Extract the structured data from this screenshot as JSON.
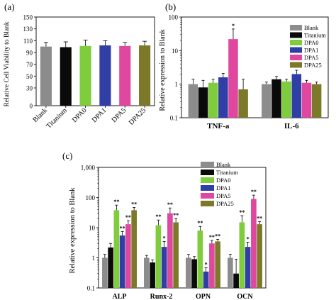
{
  "colors": {
    "Blank": "#8c8c8c",
    "Titanium": "#0a0a0a",
    "DPA0": "#7fcc3d",
    "DPA1": "#2f3fa5",
    "DPA5": "#e0479e",
    "DPA25": "#7c7a2a"
  },
  "chart_data": [
    {
      "panel": "(a)",
      "type": "bar",
      "ylabel": "Relative Cell Viability to Blank",
      "ylim": [
        0,
        150
      ],
      "yticks": [
        0,
        30,
        50,
        70,
        90,
        110,
        130,
        150
      ],
      "categories": [
        "Blank",
        "Titanium",
        "DPA0",
        "DPA1",
        "DPA5",
        "DPA25"
      ],
      "values": [
        100,
        99,
        101,
        102,
        101,
        102
      ],
      "errors": [
        7,
        9,
        10,
        8,
        6,
        7
      ]
    },
    {
      "panel": "(b)",
      "type": "bar",
      "ylabel": "Relative expression to Blank",
      "scale": "log",
      "ylim": [
        0.1,
        100
      ],
      "yticks": [
        0.1,
        1,
        10,
        100
      ],
      "yticklabels": [
        "0.1",
        "1",
        "10",
        "100"
      ],
      "categories": [
        "TNF-a",
        "IL-6"
      ],
      "series": [
        {
          "name": "Blank",
          "values": [
            1.0,
            1.0
          ],
          "errors": [
            0.4,
            0.15
          ],
          "marks": [
            "",
            ""
          ]
        },
        {
          "name": "Titanium",
          "values": [
            0.8,
            1.4
          ],
          "errors": [
            0.5,
            0.3
          ],
          "marks": [
            "",
            ""
          ]
        },
        {
          "name": "DPA0",
          "values": [
            1.1,
            1.2
          ],
          "errors": [
            0.3,
            0.2
          ],
          "marks": [
            "",
            ""
          ]
        },
        {
          "name": "DPA1",
          "values": [
            1.6,
            2.0
          ],
          "errors": [
            0.5,
            0.6
          ],
          "marks": [
            "",
            ""
          ]
        },
        {
          "name": "DPA5",
          "values": [
            22,
            1.1
          ],
          "errors": [
            22,
            0.2
          ],
          "marks": [
            "*",
            ""
          ]
        },
        {
          "name": "DPA25",
          "values": [
            0.7,
            1.0
          ],
          "errors": [
            0.7,
            0.15
          ],
          "marks": [
            "",
            ""
          ]
        }
      ],
      "legend": "top-right"
    },
    {
      "panel": "(c)",
      "type": "bar",
      "ylabel": "Relative expression to Blank",
      "scale": "log",
      "ylim": [
        0.1,
        1000
      ],
      "yticks": [
        0.1,
        1,
        10,
        100,
        1000
      ],
      "yticklabels": [
        "0.1",
        "1",
        "10",
        "100",
        "1,000"
      ],
      "categories": [
        "ALP",
        "Runx-2",
        "OPN",
        "OCN"
      ],
      "series": [
        {
          "name": "Blank",
          "values": [
            1.0,
            1.0,
            1.0,
            1.0
          ],
          "errors": [
            0.3,
            0.2,
            0.3,
            0.3
          ],
          "marks": [
            "",
            "",
            "",
            ""
          ]
        },
        {
          "name": "Titanium",
          "values": [
            2.2,
            0.7,
            0.9,
            0.3
          ],
          "errors": [
            0.8,
            0.15,
            0.2,
            0.6
          ],
          "marks": [
            "",
            "",
            "",
            ""
          ]
        },
        {
          "name": "DPA0",
          "values": [
            38,
            12,
            8,
            15
          ],
          "errors": [
            18,
            6,
            3,
            10
          ],
          "marks": [
            "**",
            "**",
            "**",
            "**"
          ]
        },
        {
          "name": "DPA1",
          "values": [
            5.5,
            2.3,
            0.35,
            2.3
          ],
          "errors": [
            2,
            1.2,
            0.12,
            1
          ],
          "marks": [
            "**",
            "*",
            "*",
            "*"
          ]
        },
        {
          "name": "DPA5",
          "values": [
            13,
            30,
            3,
            90
          ],
          "errors": [
            4,
            15,
            0.8,
            30
          ],
          "marks": [
            "**",
            "**",
            "**",
            "**"
          ]
        },
        {
          "name": "DPA25",
          "values": [
            38,
            15,
            3.5,
            13
          ],
          "errors": [
            9,
            5,
            0.6,
            3
          ],
          "marks": [
            "**",
            "**",
            "**",
            "**"
          ]
        }
      ],
      "legend": "top-center"
    }
  ]
}
